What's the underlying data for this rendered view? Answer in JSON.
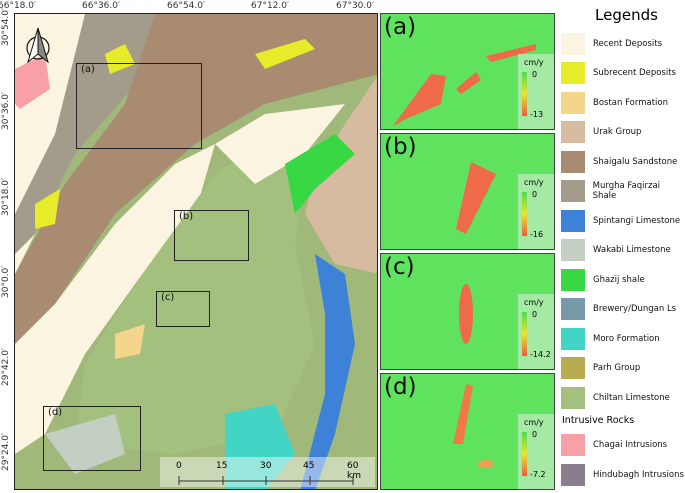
{
  "map": {
    "lon_ticks": [
      "66°18.0′",
      "66°36.0′",
      "66°54.0′",
      "67°12.0′",
      "67°30.0′"
    ],
    "lat_ticks": [
      "30°54.0′",
      "30°36.0′",
      "30°18.0′",
      "30°0.0′",
      "29°42.0′",
      "29°24.0′"
    ],
    "north_arrow": "north-arrow-icon",
    "insets": [
      "(a)",
      "(b)",
      "(c)",
      "(d)"
    ],
    "scale_ticks": [
      "0",
      "15",
      "30",
      "45",
      "60 km"
    ]
  },
  "panels": [
    {
      "label": "(a)",
      "unit": "cm/y",
      "max": "0",
      "min": "-13"
    },
    {
      "label": "(b)",
      "unit": "cm/y",
      "max": "0",
      "min": "-16"
    },
    {
      "label": "(c)",
      "unit": "cm/y",
      "max": "0",
      "min": "-14.2"
    },
    {
      "label": "(d)",
      "unit": "cm/y",
      "max": "0",
      "min": "-7.2"
    }
  ],
  "legend": {
    "title": "Legends",
    "items": [
      {
        "label": "Recent Deposits",
        "color": "#fbf4e0"
      },
      {
        "label": "Subrecent Deposits",
        "color": "#e6ec2a"
      },
      {
        "label": "Bostan Formation",
        "color": "#f5d48c"
      },
      {
        "label": "Urak Group",
        "color": "#d6bba0"
      },
      {
        "label": "Shaigalu Sandstone",
        "color": "#a88b70"
      },
      {
        "label": "Murgha Faqirzai Shale",
        "color": "#a39c8a"
      },
      {
        "label": "Spintangi Limestone",
        "color": "#3e82d8"
      },
      {
        "label": "Wakabi Limestone",
        "color": "#c4cfc4"
      },
      {
        "label": "Ghazij shale",
        "color": "#38d844"
      },
      {
        "label": "Brewery/Dungan Ls",
        "color": "#7899a8"
      },
      {
        "label": "Moro Formation",
        "color": "#42d4c4"
      },
      {
        "label": "Parh Group",
        "color": "#b8ac52"
      },
      {
        "label": "Chiltan Limestone",
        "color": "#a4c07e"
      }
    ],
    "subtitle": "Intrusive Rocks",
    "intrusive": [
      {
        "label": "Chagai Intrusions",
        "color": "#f7a0a8"
      },
      {
        "label": "Hindubagh Intrusions",
        "color": "#8a7e8e"
      }
    ]
  }
}
